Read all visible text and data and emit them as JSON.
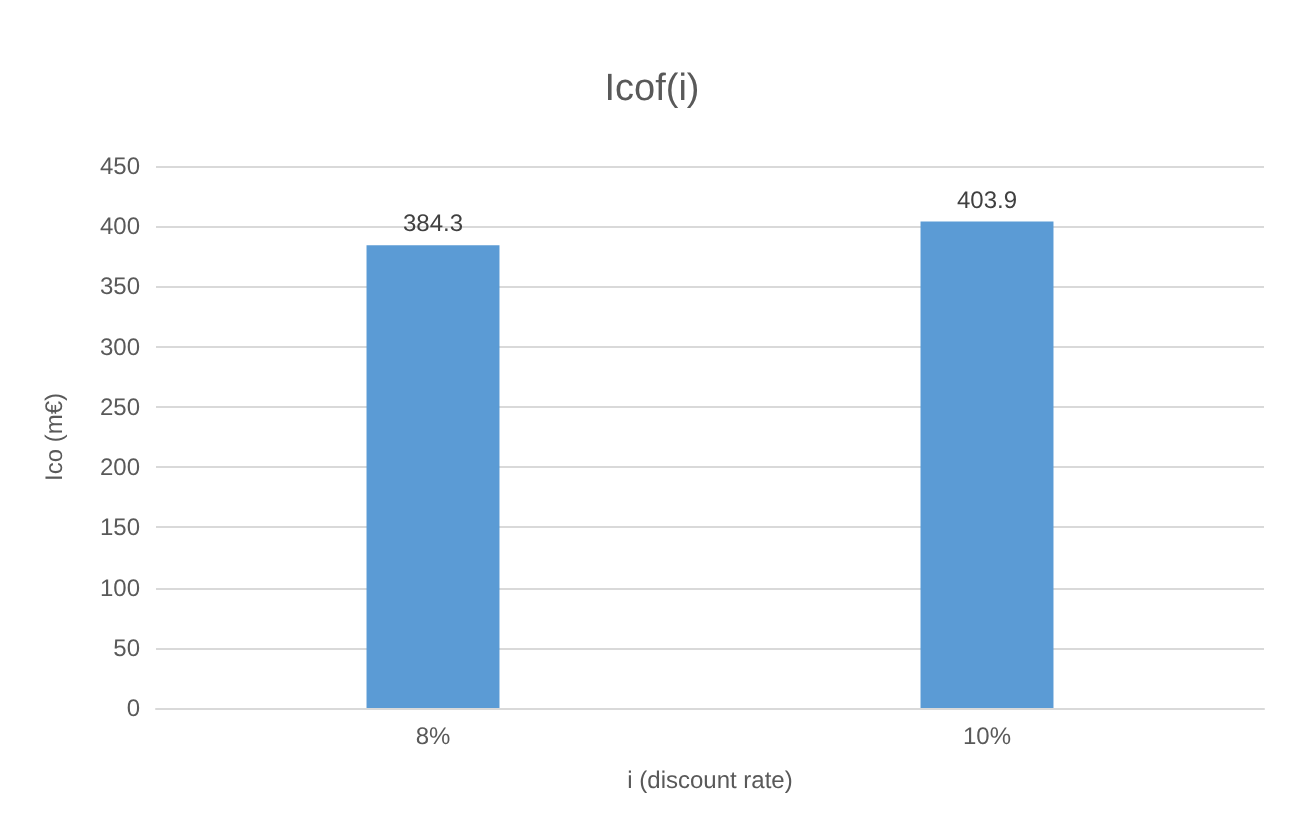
{
  "chart_data": {
    "type": "bar",
    "title": "Icof(i)",
    "xlabel": "i (discount rate)",
    "ylabel": "Ico (m€)",
    "categories": [
      "8%",
      "10%"
    ],
    "values": [
      384.3,
      403.9
    ],
    "color": "#5b9bd5",
    "ylim": [
      0,
      450
    ],
    "yticks": [
      0,
      50,
      100,
      150,
      200,
      250,
      300,
      350,
      400,
      450
    ],
    "grid": "y",
    "data_labels": true
  }
}
